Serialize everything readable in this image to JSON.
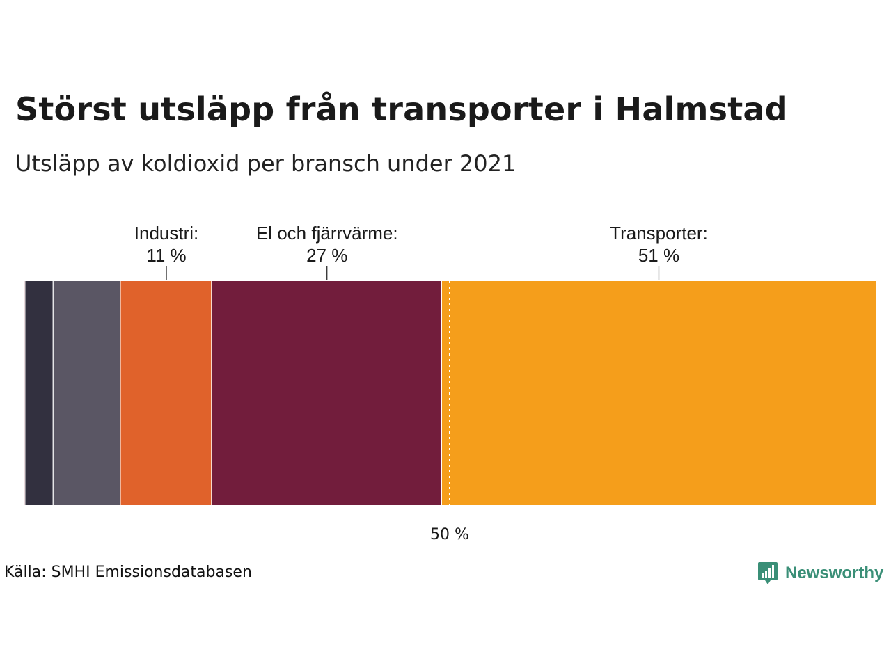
{
  "title": "Störst utsläpp från transporter i Halmstad",
  "subtitle": "Utsläpp av koldioxid per bransch under 2021",
  "source": "Källa: SMHI Emissionsdatabasen",
  "brand": "Newsworthy",
  "chart_data": {
    "type": "bar",
    "orientation": "horizontal-stacked-100",
    "segments": [
      {
        "value": 0.2,
        "color": "#8a3b4a"
      },
      {
        "value": 3.3,
        "color": "#32303f"
      },
      {
        "value": 7.9,
        "color": "#5a5664"
      },
      {
        "value": 10.7,
        "color": "#e0622b",
        "label": "Industri:",
        "value_label": "11 %"
      },
      {
        "value": 27.0,
        "color": "#721d3c",
        "label": "El och fjärrvärme:",
        "value_label": "27 %"
      },
      {
        "value": 50.9,
        "color": "#f59e1b",
        "label": "Transporter:",
        "value_label": "51 %"
      }
    ],
    "reference_line": {
      "value": 50,
      "label": "50 %"
    },
    "xlim": [
      0,
      100
    ],
    "grid": false,
    "legend": "none"
  },
  "colors": {
    "brand": "#3a8f77",
    "text": "#1a1a1a"
  }
}
